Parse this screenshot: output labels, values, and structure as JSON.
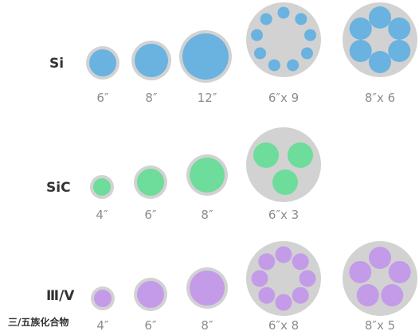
{
  "colors": {
    "wafer_gray": "#d2d2d2",
    "si_blue": "#6ab2e0",
    "sic_green": "#6edc9a",
    "iiiv_purple": "#c49be8"
  },
  "rows": {
    "si": {
      "label": "Si",
      "captions": [
        "6″",
        "8″",
        "12″",
        "6″x 9",
        "8″x 6"
      ]
    },
    "sic": {
      "label": "SiC",
      "captions": [
        "4″",
        "6″",
        "8″",
        "6″x 3"
      ]
    },
    "iiiv": {
      "label": "Ⅲ/V",
      "sublabel": "三/五族化合物",
      "captions": [
        "4″",
        "6″",
        "8″",
        "6″x 8",
        "8″x 5"
      ]
    }
  }
}
